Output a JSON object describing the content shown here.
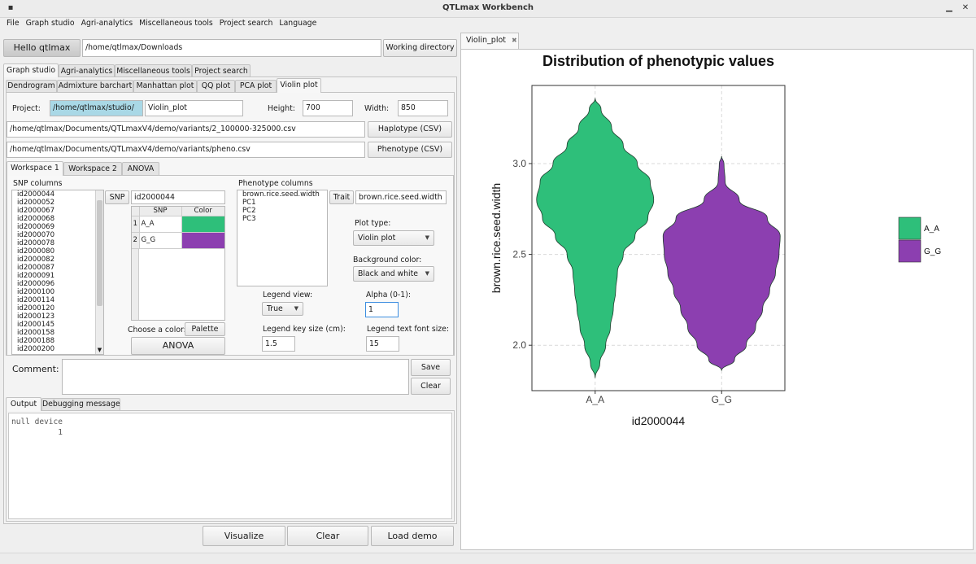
{
  "window": {
    "title": "QTLmax Workbench"
  },
  "menu": [
    "File",
    "Graph studio",
    "Agri-analytics",
    "Miscellaneous tools",
    "Project search",
    "Language"
  ],
  "top": {
    "hello_button": "Hello qtlmax",
    "path": "/home/qtlmax/Downloads",
    "working_dir_button": "Working directory"
  },
  "main_tabs": [
    "Graph studio",
    "Agri-analytics",
    "Miscellaneous tools",
    "Project search"
  ],
  "sub_tabs": [
    "Dendrogram",
    "Admixture barchart",
    "Manhattan plot",
    "QQ plot",
    "PCA plot",
    "Violin plot"
  ],
  "project": {
    "project_label": "Project:",
    "project_value": "/home/qtlmax/studio/",
    "name_value": "Violin_plot",
    "height_label": "Height:",
    "height_value": "700",
    "width_label": "Width:",
    "width_value": "850",
    "haplotype_path": "/home/qtlmax/Documents/QTLmaxV4/demo/variants/2_100000-325000.csv",
    "haplotype_button": "Haplotype (CSV)",
    "phenotype_path": "/home/qtlmax/Documents/QTLmaxV4/demo/variants/pheno.csv",
    "phenotype_button": "Phenotype (CSV)"
  },
  "workspace_tabs": [
    "Workspace 1",
    "Workspace 2",
    "ANOVA"
  ],
  "snp": {
    "columns_label": "SNP columns",
    "list": [
      "id2000044",
      "id2000052",
      "id2000067",
      "id2000068",
      "id2000069",
      "id2000070",
      "id2000078",
      "id2000080",
      "id2000082",
      "id2000087",
      "id2000091",
      "id2000096",
      "id2000100",
      "id2000114",
      "id2000120",
      "id2000123",
      "id2000145",
      "id2000158",
      "id2000188",
      "id2000200"
    ],
    "button": "SNP",
    "value": "id2000044",
    "table_headers": [
      "SNP",
      "Color"
    ],
    "rows": [
      {
        "num": "1",
        "snp": "A_A",
        "color": "#2ebf7a"
      },
      {
        "num": "2",
        "snp": "G_G",
        "color": "#8c3fb0"
      }
    ],
    "choose_color_label": "Choose a color:",
    "palette_button": "Palette",
    "anova_button": "ANOVA"
  },
  "phenotype": {
    "columns_label": "Phenotype columns",
    "list": [
      "brown.rice.seed.width",
      "PC1",
      "PC2",
      "PC3"
    ],
    "trait_button": "Trait",
    "trait_value": "brown.rice.seed.width"
  },
  "options": {
    "plot_type_label": "Plot type:",
    "plot_type_value": "Violin plot",
    "background_label": "Background color:",
    "background_value": "Black and white",
    "legend_view_label": "Legend view:",
    "legend_view_value": "True",
    "alpha_label": "Alpha (0-1):",
    "alpha_value": "1",
    "legend_key_label": "Legend key size (cm):",
    "legend_key_value": "1.5",
    "legend_text_label": "Legend text font size:",
    "legend_text_value": "15"
  },
  "comment": {
    "label": "Comment:",
    "value": "",
    "save_button": "Save",
    "clear_button": "Clear"
  },
  "output_tabs": [
    "Output",
    "Debugging message"
  ],
  "output_text": "null device\n          1",
  "bottom_buttons": {
    "visualize": "Visualize",
    "clear": "Clear",
    "load_demo": "Load demo"
  },
  "right_tab": {
    "label": "Violin_plot",
    "close": "✖"
  },
  "chart_data": {
    "type": "violin",
    "title": "Distribution of phenotypic values",
    "xlabel": "id2000044",
    "ylabel": "brown.rice.seed.width",
    "categories": [
      "A_A",
      "G_G"
    ],
    "yticks": [
      2.0,
      2.5,
      3.0
    ],
    "ylim": [
      1.75,
      3.43
    ],
    "grid": true,
    "legend_position": "right",
    "series": [
      {
        "name": "A_A",
        "color": "#2ebf7a",
        "profile": [
          [
            1.82,
            0.0
          ],
          [
            1.9,
            0.08
          ],
          [
            2.0,
            0.18
          ],
          [
            2.1,
            0.26
          ],
          [
            2.2,
            0.31
          ],
          [
            2.3,
            0.35
          ],
          [
            2.4,
            0.38
          ],
          [
            2.5,
            0.48
          ],
          [
            2.6,
            0.68
          ],
          [
            2.7,
            0.9
          ],
          [
            2.8,
            1.0
          ],
          [
            2.9,
            0.94
          ],
          [
            3.0,
            0.72
          ],
          [
            3.1,
            0.48
          ],
          [
            3.2,
            0.28
          ],
          [
            3.3,
            0.1
          ],
          [
            3.36,
            0.0
          ]
        ]
      },
      {
        "name": "G_G",
        "color": "#8c3fb0",
        "profile": [
          [
            1.86,
            0.0
          ],
          [
            1.92,
            0.22
          ],
          [
            2.0,
            0.42
          ],
          [
            2.1,
            0.58
          ],
          [
            2.2,
            0.7
          ],
          [
            2.3,
            0.82
          ],
          [
            2.4,
            0.92
          ],
          [
            2.5,
            0.98
          ],
          [
            2.6,
            1.0
          ],
          [
            2.7,
            0.78
          ],
          [
            2.8,
            0.3
          ],
          [
            2.9,
            0.06
          ],
          [
            3.0,
            0.04
          ],
          [
            3.04,
            0.0
          ]
        ]
      }
    ]
  }
}
